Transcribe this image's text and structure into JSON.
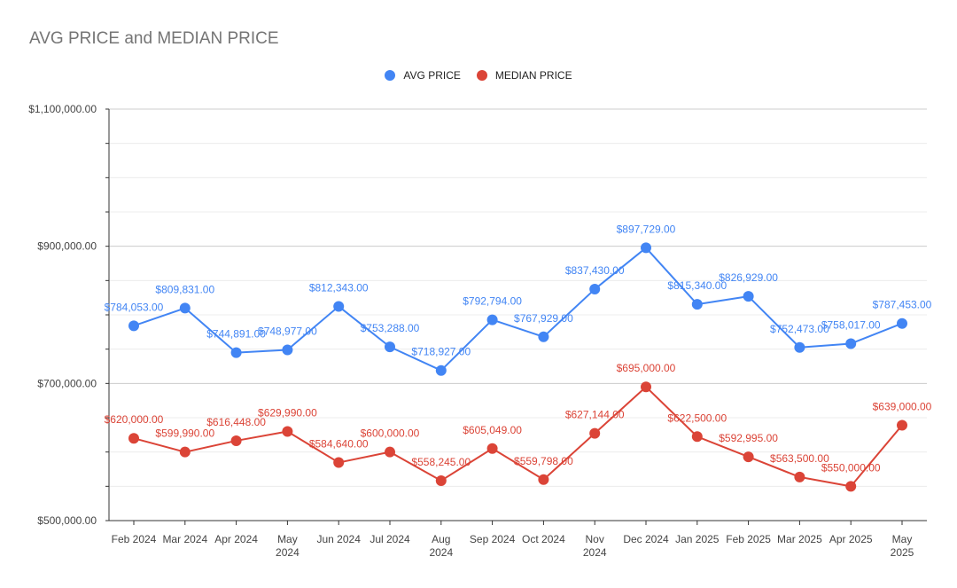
{
  "chart_data": {
    "type": "line",
    "title": "AVG PRICE and MEDIAN PRICE",
    "xlabel": "",
    "ylabel": "",
    "ylim": [
      500000,
      1100000
    ],
    "yticks": [
      500000,
      700000,
      900000,
      1100000
    ],
    "ytick_labels": [
      "$500,000.00",
      "$700,000.00",
      "$900,000.00",
      "$1,100,000.00"
    ],
    "grid": true,
    "legend_position": "top",
    "categories": [
      [
        "Feb 2024"
      ],
      [
        "Mar 2024"
      ],
      [
        "Apr 2024"
      ],
      [
        "May",
        "2024"
      ],
      [
        "Jun 2024"
      ],
      [
        "Jul 2024"
      ],
      [
        "Aug",
        "2024"
      ],
      [
        "Sep 2024"
      ],
      [
        "Oct 2024"
      ],
      [
        "Nov",
        "2024"
      ],
      [
        "Dec 2024"
      ],
      [
        "Jan 2025"
      ],
      [
        "Feb 2025"
      ],
      [
        "Mar 2025"
      ],
      [
        "Apr 2025"
      ],
      [
        "May",
        "2025"
      ]
    ],
    "series": [
      {
        "name": "AVG PRICE",
        "color": "#4285F4",
        "values": [
          784053,
          809831,
          744891,
          748977,
          812343,
          753288,
          718927,
          792794,
          767929,
          837430,
          897729,
          815340,
          826929,
          752473,
          758017,
          787453
        ],
        "labels": [
          "$784,053.00",
          "$809,831.00",
          "$744,891.00",
          "$748,977.00",
          "$812,343.00",
          "$753,288.00",
          "$718,927.00",
          "$792,794.00",
          "$767,929.00",
          "$837,430.00",
          "$897,729.00",
          "$815,340.00",
          "$826,929.00",
          "$752,473.00",
          "$758,017.00",
          "$787,453.00"
        ]
      },
      {
        "name": "MEDIAN PRICE",
        "color": "#DB4437",
        "values": [
          620000,
          599990,
          616448,
          629990,
          584640,
          600000,
          558245,
          605049,
          559798,
          627144,
          695000,
          622500,
          592995,
          563500,
          550000,
          639000
        ],
        "labels": [
          "$620,000.00",
          "$599,990.00",
          "$616,448.00",
          "$629,990.00",
          "$584,640.00",
          "$600,000.00",
          "$558,245.00",
          "$605,049.00",
          "$559,798.00",
          "$627,144.00",
          "$695,000.00",
          "$622,500.00",
          "$592,995.00",
          "$563,500.00",
          "$550,000.00",
          "$639,000.00"
        ]
      }
    ]
  }
}
